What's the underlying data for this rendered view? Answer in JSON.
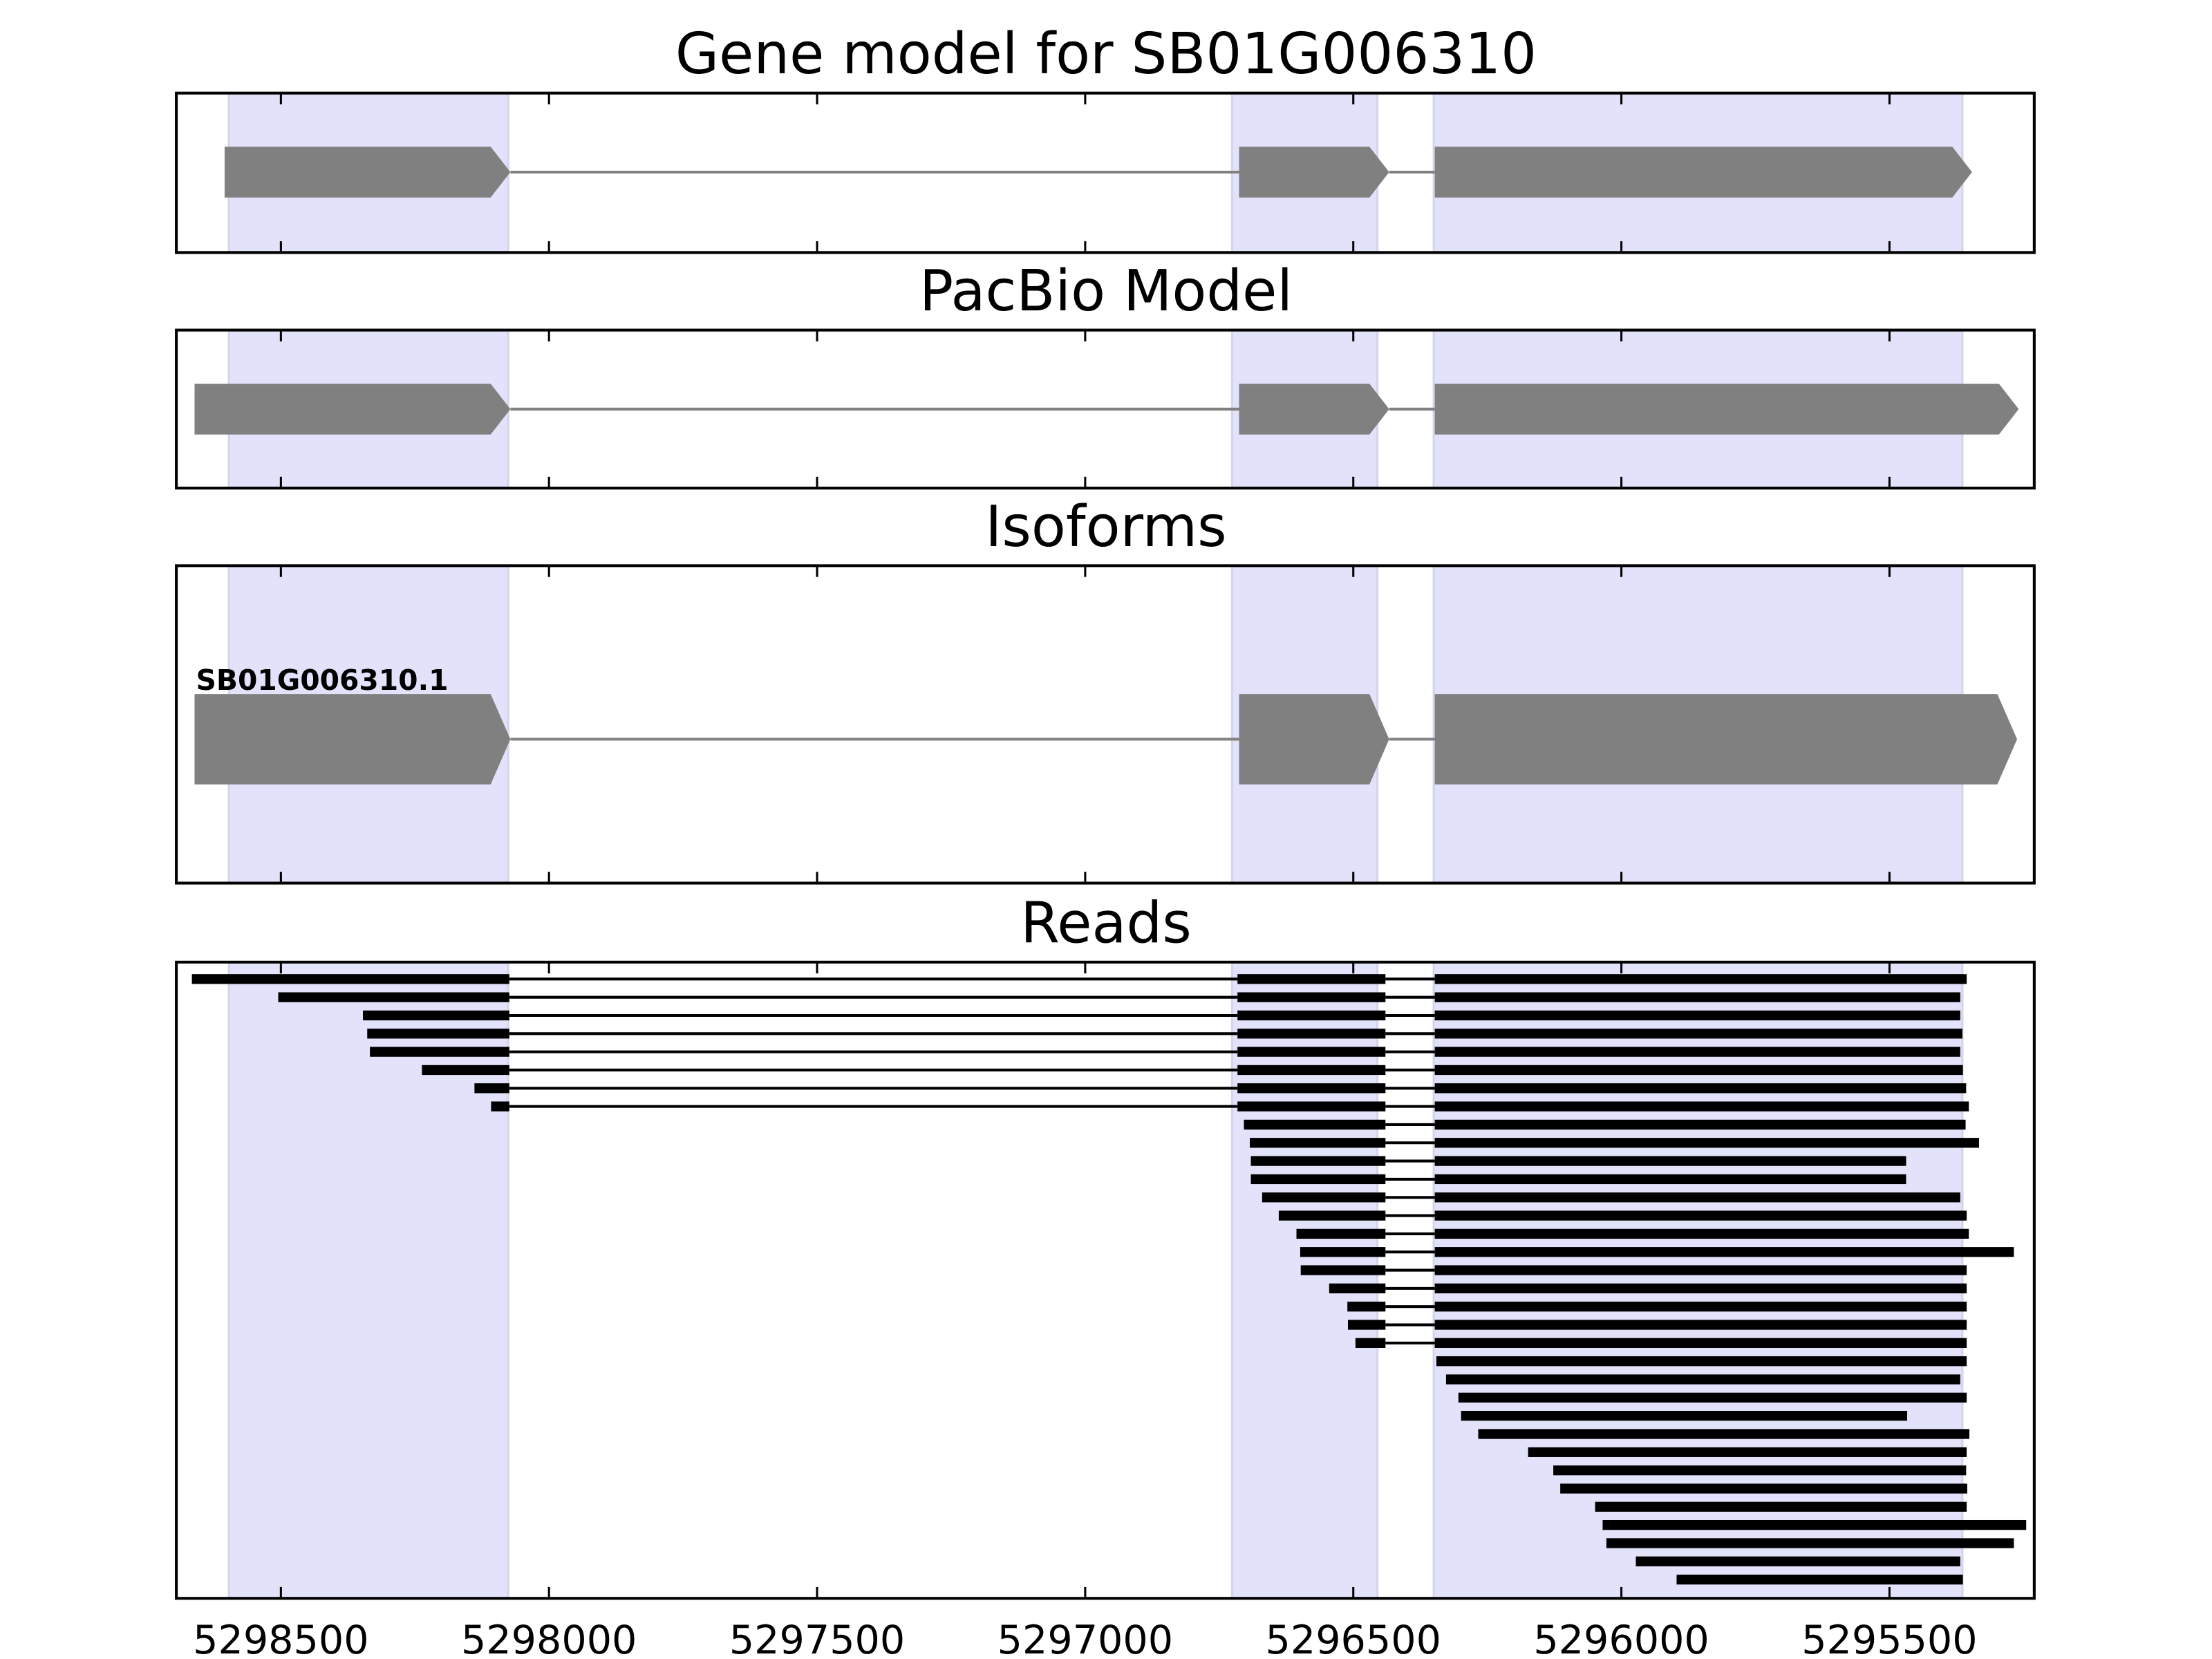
{
  "chart_data": {
    "type": "gene-structure-tracks",
    "xlim": [
      5298695,
      5295230
    ],
    "x_ticks": [
      5298500,
      5298000,
      5297500,
      5297000,
      5296500,
      5296000,
      5295500
    ],
    "x_tick_labels": [
      "5298500",
      "5298000",
      "5297500",
      "5297000",
      "5296500",
      "5296000",
      "5295500"
    ],
    "shaded_exons": [
      [
        5298597,
        5298076
      ],
      [
        5296726,
        5296455
      ],
      [
        5296350,
        5295364
      ]
    ],
    "colors": {
      "shade": "#e2e2fb",
      "feature": "#808080",
      "read": "#000000",
      "axis": "#000000"
    },
    "panels": [
      {
        "title": "Gene model for SB01G006310",
        "type": "model",
        "exons": [
          [
            5298605,
            5298072
          ],
          [
            5296713,
            5296433
          ],
          [
            5296348,
            5295346
          ]
        ]
      },
      {
        "title": "PacBio Model",
        "type": "model",
        "exons": [
          [
            5298661,
            5298072
          ],
          [
            5296713,
            5296433
          ],
          [
            5296348,
            5295259
          ]
        ]
      },
      {
        "title": "Isoforms",
        "type": "isoforms",
        "isoforms": [
          {
            "label": "SB01G006310.1",
            "exons": [
              [
                5298661,
                5298072
              ],
              [
                5296713,
                5296433
              ],
              [
                5296348,
                5295262
              ]
            ]
          }
        ]
      },
      {
        "title": "Reads",
        "type": "reads",
        "reads": [
          [
            [
              5298666,
              5298074
            ],
            [
              5296716,
              5296440
            ],
            [
              5296348,
              5295356
            ]
          ],
          [
            [
              5298505,
              5298074
            ],
            [
              5296716,
              5296440
            ],
            [
              5296348,
              5295368
            ]
          ],
          [
            [
              5298347,
              5298074
            ],
            [
              5296716,
              5296440
            ],
            [
              5296348,
              5295368
            ]
          ],
          [
            [
              5298339,
              5298074
            ],
            [
              5296716,
              5296440
            ],
            [
              5296348,
              5295364
            ]
          ],
          [
            [
              5298334,
              5298074
            ],
            [
              5296716,
              5296440
            ],
            [
              5296348,
              5295368
            ]
          ],
          [
            [
              5298237,
              5298074
            ],
            [
              5296716,
              5296440
            ],
            [
              5296348,
              5295363
            ]
          ],
          [
            [
              5298139,
              5298074
            ],
            [
              5296716,
              5296440
            ],
            [
              5296348,
              5295357
            ]
          ],
          [
            [
              5298108,
              5298074
            ],
            [
              5296716,
              5296440
            ],
            [
              5296348,
              5295352
            ]
          ],
          [
            [
              5296704,
              5296440
            ],
            [
              5296348,
              5295358
            ]
          ],
          [
            [
              5296693,
              5296440
            ],
            [
              5296348,
              5295333
            ]
          ],
          [
            [
              5296691,
              5296440
            ],
            [
              5296348,
              5295469
            ]
          ],
          [
            [
              5296691,
              5296440
            ],
            [
              5296348,
              5295469
            ]
          ],
          [
            [
              5296670,
              5296440
            ],
            [
              5296348,
              5295368
            ]
          ],
          [
            [
              5296639,
              5296440
            ],
            [
              5296348,
              5295356
            ]
          ],
          [
            [
              5296606,
              5296440
            ],
            [
              5296348,
              5295352
            ]
          ],
          [
            [
              5296599,
              5296440
            ],
            [
              5296348,
              5295268
            ]
          ],
          [
            [
              5296598,
              5296440
            ],
            [
              5296348,
              5295356
            ]
          ],
          [
            [
              5296545,
              5296440
            ],
            [
              5296348,
              5295356
            ]
          ],
          [
            [
              5296511,
              5296440
            ],
            [
              5296348,
              5295356
            ]
          ],
          [
            [
              5296510,
              5296440
            ],
            [
              5296348,
              5295356
            ]
          ],
          [
            [
              5296496,
              5296440
            ],
            [
              5296348,
              5295356
            ]
          ],
          [
            [
              5296345,
              5295356
            ]
          ],
          [
            [
              5296327,
              5295368
            ]
          ],
          [
            [
              5296304,
              5295356
            ]
          ],
          [
            [
              5296299,
              5295467
            ]
          ],
          [
            [
              5296267,
              5295351
            ]
          ],
          [
            [
              5296174,
              5295356
            ]
          ],
          [
            [
              5296127,
              5295357
            ]
          ],
          [
            [
              5296114,
              5295355
            ]
          ],
          [
            [
              5296049,
              5295356
            ]
          ],
          [
            [
              5296035,
              5295245
            ]
          ],
          [
            [
              5296028,
              5295268
            ]
          ],
          [
            [
              5295973,
              5295368
            ]
          ],
          [
            [
              5295897,
              5295363
            ]
          ]
        ]
      }
    ]
  }
}
